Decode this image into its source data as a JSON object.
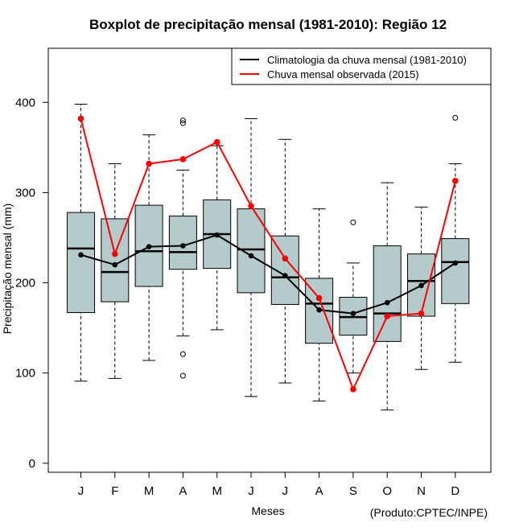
{
  "chart_data": {
    "type": "boxplot",
    "title": "Boxplot de precipitação mensal (1981-2010): Região 12",
    "xlabel": "Meses",
    "ylabel": "Precipitação mensal (mm)",
    "credit": "(Produto:CPTEC/INPE)",
    "categories": [
      "J",
      "F",
      "M",
      "A",
      "M",
      "J",
      "J",
      "A",
      "S",
      "O",
      "N",
      "D"
    ],
    "ylim": [
      -10,
      460
    ],
    "yticks": [
      0,
      100,
      200,
      300,
      400
    ],
    "legend": {
      "position": "top-right",
      "entries": [
        {
          "label": "Climatologia da chuva mensal (1981-2010)",
          "color": "#000000"
        },
        {
          "label": "Chuva mensal observada (2015)",
          "color": "#ff0000"
        }
      ]
    },
    "box_fill": "#b5cbcb",
    "boxes": [
      {
        "whisker_low": 91,
        "q1": 167,
        "median": 238,
        "q3": 278,
        "whisker_high": 398,
        "outliers": []
      },
      {
        "whisker_low": 94,
        "q1": 179,
        "median": 212,
        "q3": 271,
        "whisker_high": 332,
        "outliers": []
      },
      {
        "whisker_low": 114,
        "q1": 196,
        "median": 235,
        "q3": 286,
        "whisker_high": 364,
        "outliers": []
      },
      {
        "whisker_low": 141,
        "q1": 215,
        "median": 234,
        "q3": 274,
        "whisker_high": 325,
        "outliers": [
          97,
          121,
          377,
          380
        ]
      },
      {
        "whisker_low": 148,
        "q1": 216,
        "median": 254,
        "q3": 292,
        "whisker_high": 352,
        "outliers": []
      },
      {
        "whisker_low": 74,
        "q1": 189,
        "median": 237,
        "q3": 282,
        "whisker_high": 382,
        "outliers": []
      },
      {
        "whisker_low": 89,
        "q1": 176,
        "median": 206,
        "q3": 252,
        "whisker_high": 359,
        "outliers": []
      },
      {
        "whisker_low": 69,
        "q1": 133,
        "median": 177,
        "q3": 205,
        "whisker_high": 282,
        "outliers": []
      },
      {
        "whisker_low": 100,
        "q1": 142,
        "median": 162,
        "q3": 184,
        "whisker_high": 222,
        "outliers": [
          267
        ]
      },
      {
        "whisker_low": 59,
        "q1": 135,
        "median": 166,
        "q3": 241,
        "whisker_high": 311,
        "outliers": []
      },
      {
        "whisker_low": 104,
        "q1": 163,
        "median": 202,
        "q3": 232,
        "whisker_high": 284,
        "outliers": []
      },
      {
        "whisker_low": 112,
        "q1": 177,
        "median": 223,
        "q3": 249,
        "whisker_high": 332,
        "outliers": [
          383
        ]
      }
    ],
    "series": [
      {
        "name": "Climatologia da chuva mensal (1981-2010)",
        "color": "#000000",
        "values": [
          231,
          220,
          240,
          241,
          253,
          230,
          208,
          170,
          166,
          178,
          197,
          222
        ]
      },
      {
        "name": "Chuva mensal observada (2015)",
        "color": "#ff0000",
        "values": [
          382,
          232,
          332,
          337,
          356,
          285,
          227,
          183,
          82,
          163,
          166,
          313
        ]
      }
    ]
  }
}
